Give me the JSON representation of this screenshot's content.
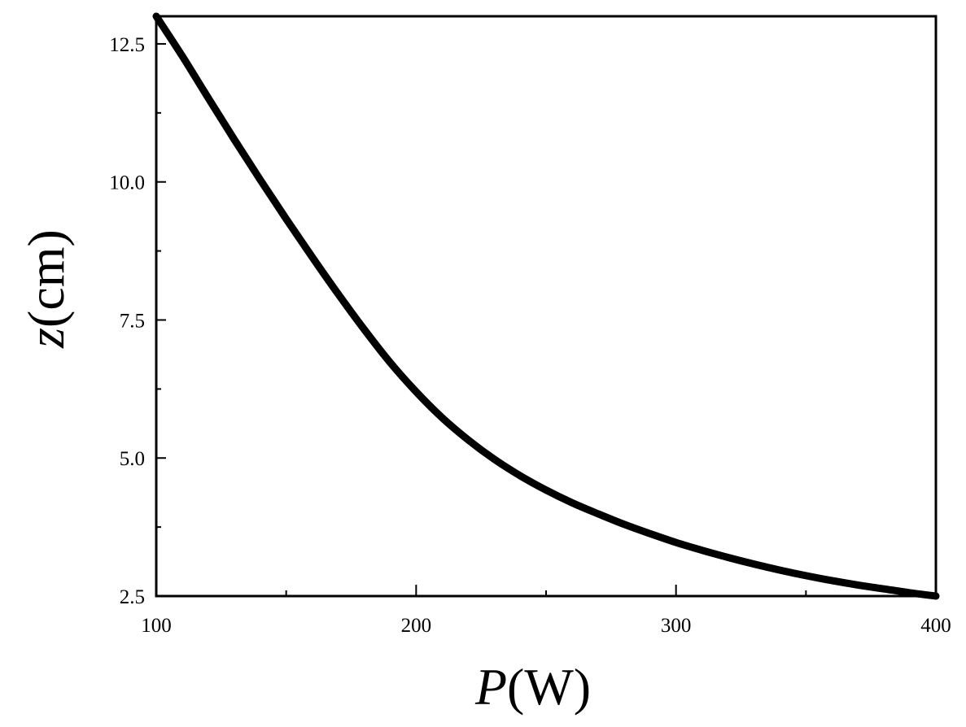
{
  "chart_data": {
    "type": "line",
    "title": "",
    "xlabel": {
      "var": "P",
      "unit": "(W)"
    },
    "ylabel": {
      "var": "z",
      "unit": "(cm)"
    },
    "xlim": [
      100,
      400
    ],
    "ylim": [
      2.5,
      13.0
    ],
    "x_ticks": [
      "100",
      "200",
      "300",
      "400"
    ],
    "y_ticks": [
      "2.5",
      "5.0",
      "7.5",
      "10.0",
      "12.5"
    ],
    "grid": false,
    "legend": "none",
    "line_color": "#000000",
    "series": [
      {
        "x": [
          100,
          110,
          120,
          130,
          140,
          150,
          160,
          170,
          180,
          190,
          200,
          210,
          220,
          230,
          240,
          250,
          260,
          270,
          280,
          290,
          300,
          310,
          320,
          330,
          340,
          350,
          360,
          370,
          380,
          390,
          400
        ],
        "y": [
          13.0,
          12.28,
          11.52,
          10.77,
          10.04,
          9.33,
          8.64,
          7.97,
          7.33,
          6.73,
          6.2,
          5.73,
          5.33,
          4.98,
          4.68,
          4.42,
          4.19,
          3.99,
          3.8,
          3.63,
          3.47,
          3.33,
          3.2,
          3.08,
          2.97,
          2.87,
          2.78,
          2.7,
          2.63,
          2.56,
          2.5
        ]
      }
    ]
  }
}
